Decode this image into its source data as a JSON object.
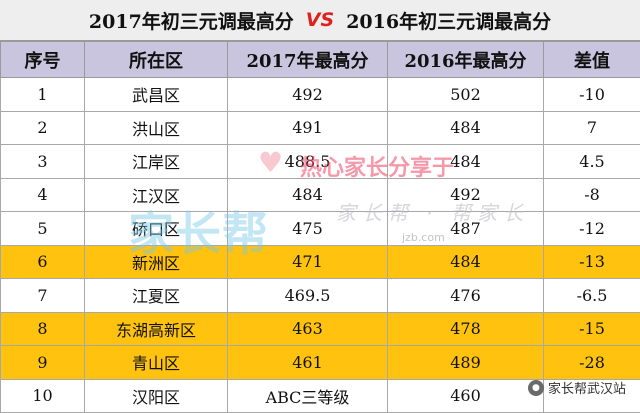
{
  "title": {
    "left": "2017年初三元调最高分",
    "vs": "VS",
    "right": "2016年初三元调最高分"
  },
  "headers": [
    "序号",
    "所在区",
    "2017年最高分",
    "2016年最高分",
    "差值"
  ],
  "rows": [
    {
      "no": "1",
      "district": "武昌区",
      "score2017": "492",
      "score2016": "502",
      "diff": "-10",
      "highlight": false
    },
    {
      "no": "2",
      "district": "洪山区",
      "score2017": "491",
      "score2016": "484",
      "diff": "7",
      "highlight": false
    },
    {
      "no": "3",
      "district": "江岸区",
      "score2017": "488.5",
      "score2016": "484",
      "diff": "4.5",
      "highlight": false
    },
    {
      "no": "4",
      "district": "江汉区",
      "score2017": "484",
      "score2016": "492",
      "diff": "-8",
      "highlight": false
    },
    {
      "no": "5",
      "district": "硚口区",
      "score2017": "475",
      "score2016": "487",
      "diff": "-12",
      "highlight": false
    },
    {
      "no": "6",
      "district": "新洲区",
      "score2017": "471",
      "score2016": "484",
      "diff": "-13",
      "highlight": true
    },
    {
      "no": "7",
      "district": "江夏区",
      "score2017": "469.5",
      "score2016": "476",
      "diff": "-6.5",
      "highlight": false
    },
    {
      "no": "8",
      "district": "东湖高新区",
      "score2017": "463",
      "score2016": "478",
      "diff": "-15",
      "highlight": true
    },
    {
      "no": "9",
      "district": "青山区",
      "score2017": "461",
      "score2016": "489",
      "diff": "-28",
      "highlight": true
    },
    {
      "no": "10",
      "district": "汉阳区",
      "score2017": "ABC三等级",
      "score2016": "460",
      "diff": "",
      "highlight": false
    }
  ],
  "watermark": {
    "brand": "家长帮",
    "slogan": "热心家长分享于",
    "sub": "家长帮 · 帮家长",
    "url": "jzb.com"
  },
  "badge": {
    "text": "家长帮武汉站",
    "icon": "wechat-icon"
  },
  "colors": {
    "header_bg": "#c9c5de",
    "highlight": "#ffc20e",
    "vs": "#e0201d"
  }
}
